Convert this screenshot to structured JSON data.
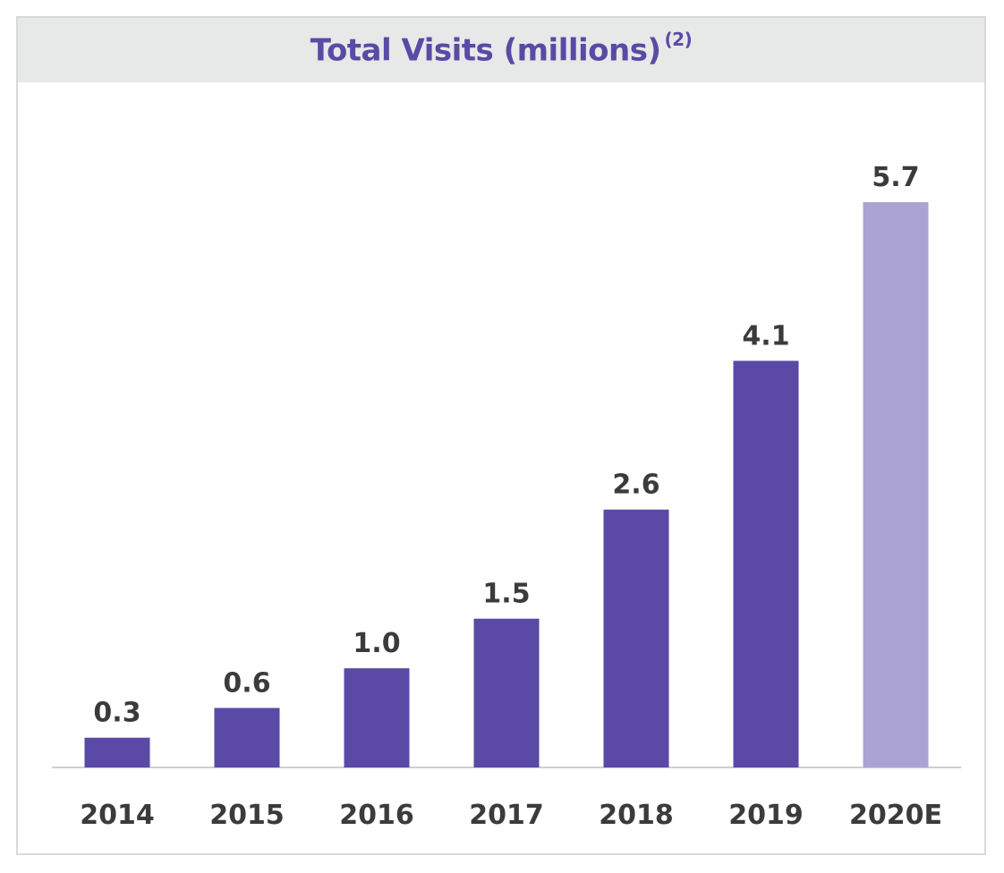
{
  "chart_data": {
    "type": "bar",
    "title": "Total Visits (millions)",
    "title_footnote": "(2)",
    "categories": [
      "2014",
      "2015",
      "2016",
      "2017",
      "2018",
      "2019",
      "2020E"
    ],
    "values": [
      0.3,
      0.6,
      1.0,
      1.5,
      2.6,
      4.1,
      5.7
    ],
    "value_labels": [
      "0.3",
      "0.6",
      "1.0",
      "1.5",
      "2.6",
      "4.1",
      "5.7"
    ],
    "estimated": [
      false,
      false,
      false,
      false,
      false,
      false,
      true
    ],
    "xlabel": "",
    "ylabel": "",
    "ylim": [
      0,
      5.7
    ],
    "grid": false,
    "legend": "none",
    "colors": {
      "actual": "#5a4aa6",
      "estimate": "#aba3d4",
      "title": "#5a4aa6",
      "title_background": "#e7e8e8",
      "labels": "#3b3b3b",
      "axis": "#cfcfcf",
      "frame": "#d9d9d9"
    }
  }
}
